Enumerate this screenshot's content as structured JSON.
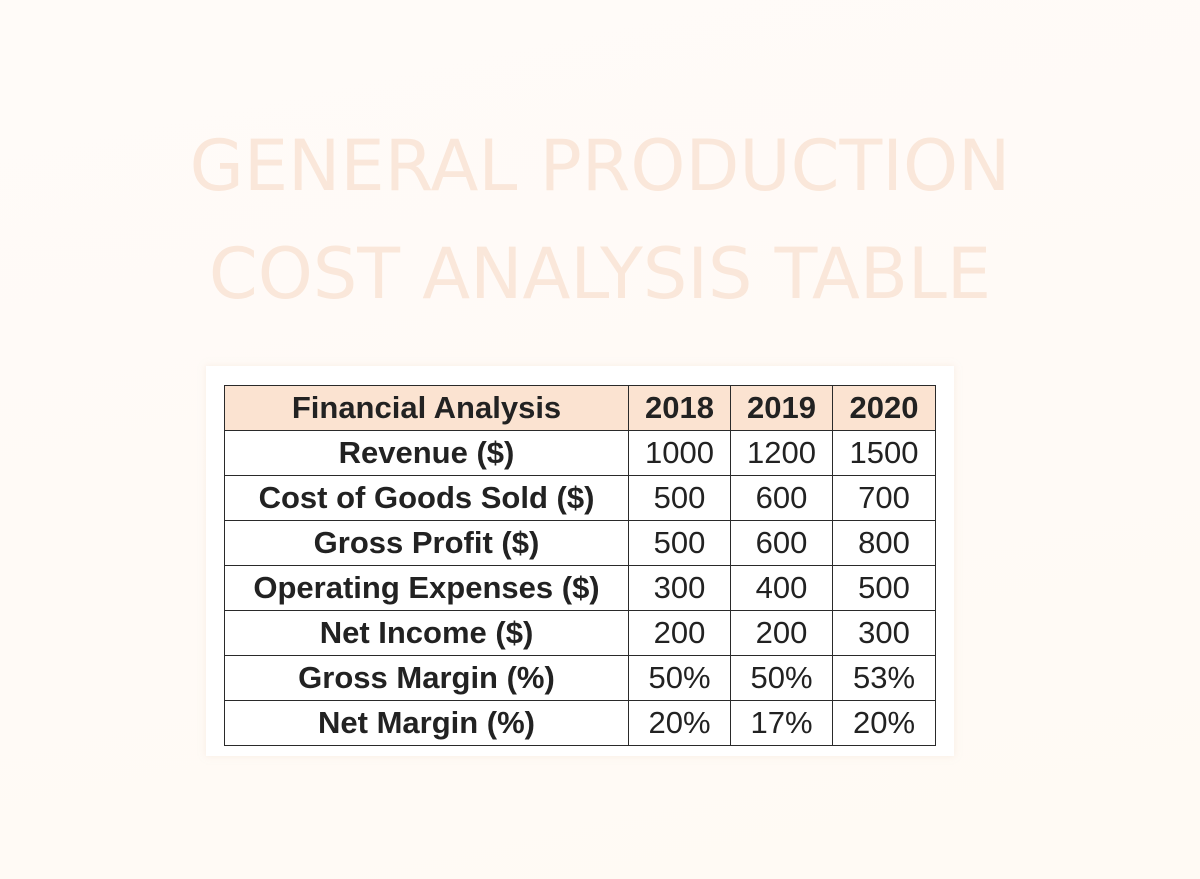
{
  "title": {
    "line1": "GENERAL PRODUCTION",
    "line2": "COST ANALYSIS TABLE"
  },
  "table": {
    "headers": [
      "Financial Analysis",
      "2018",
      "2019",
      "2020"
    ],
    "rows": [
      {
        "label": "Revenue ($)",
        "values": [
          "1000",
          "1200",
          "1500"
        ]
      },
      {
        "label": "Cost of Goods Sold ($)",
        "values": [
          "500",
          "600",
          "700"
        ]
      },
      {
        "label": "Gross Profit ($)",
        "values": [
          "500",
          "600",
          "800"
        ]
      },
      {
        "label": "Operating Expenses ($)",
        "values": [
          "300",
          "400",
          "500"
        ]
      },
      {
        "label": "Net Income ($)",
        "values": [
          "200",
          "200",
          "300"
        ]
      },
      {
        "label": "Gross Margin (%)",
        "values": [
          "50%",
          "50%",
          "53%"
        ]
      },
      {
        "label": "Net Margin (%)",
        "values": [
          "20%",
          "17%",
          "20%"
        ]
      }
    ]
  },
  "colors": {
    "title": "#fae7da",
    "header_bg": "#fbe3d1",
    "border": "#2a2a2a",
    "text": "#222222",
    "background": "#fffaf6"
  }
}
